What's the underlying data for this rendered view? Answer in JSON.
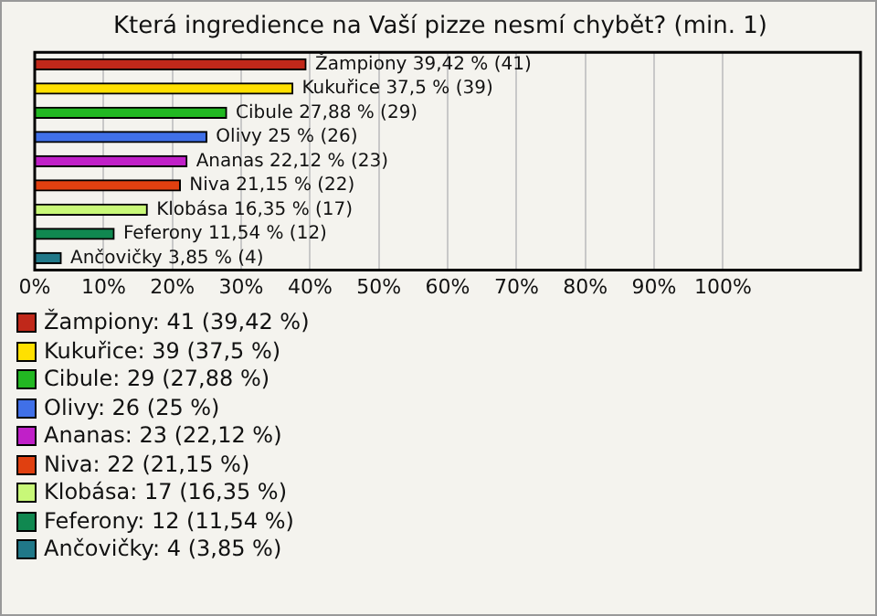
{
  "chart_data": {
    "type": "bar",
    "orientation": "horizontal",
    "title": "Která ingredience na Vaší pizze nesmí chybět? (min. 1)",
    "categories": [
      null,
      null,
      null,
      null,
      null,
      null,
      null,
      null,
      null
    ],
    "values": [
      39.42,
      37.5,
      27.88,
      25,
      22.12,
      21.15,
      16.35,
      11.54,
      3.85
    ],
    "colors": [
      "#c0281a",
      "#ffe000",
      "#22b822",
      "#4070e8",
      "#c020c8",
      "#e04010",
      "#c8f878",
      "#108850",
      "#207888"
    ],
    "value_labels": [
      "Žampiony 39,42 % (41)",
      "Kukuřice 37,5 % (39)",
      "Cibule 27,88 % (29)",
      "Olivy 25 % (26)",
      "Ananas 22,12 % (23)",
      "Niva 21,15 % (22)",
      "Klobása 16,35 % (17)",
      "Feferony 11,54 % (12)",
      "Ančovičky 3,85 % (4)"
    ],
    "xlim": [
      0,
      120
    ],
    "xticks": [
      {
        "value": 0,
        "label": "0%"
      },
      {
        "value": 10,
        "label": "10%"
      },
      {
        "value": 20,
        "label": "20%"
      },
      {
        "value": 30,
        "label": "30%"
      },
      {
        "value": 40,
        "label": "40%"
      },
      {
        "value": 50,
        "label": "50%"
      },
      {
        "value": 60,
        "label": "60%"
      },
      {
        "value": 70,
        "label": "70%"
      },
      {
        "value": 80,
        "label": "80%"
      },
      {
        "value": 90,
        "label": "90%"
      },
      {
        "value": 100,
        "label": "100%"
      }
    ],
    "grid": "x",
    "tick_labels": "x",
    "annotations": [
      "Žampiony: 41 (39,42 %)",
      "Kukuřice: 39 (37,5 %)",
      "Cibule: 29 (27,88 %)",
      "Olivy: 26 (25 %)",
      "Ananas: 23 (22,12 %)",
      "Niva: 22 (21,15 %)",
      "Klobása: 17 (16,35 %)",
      "Feferony: 12 (11,54 %)",
      "Ančovičky: 4 (3,85 %)"
    ]
  }
}
